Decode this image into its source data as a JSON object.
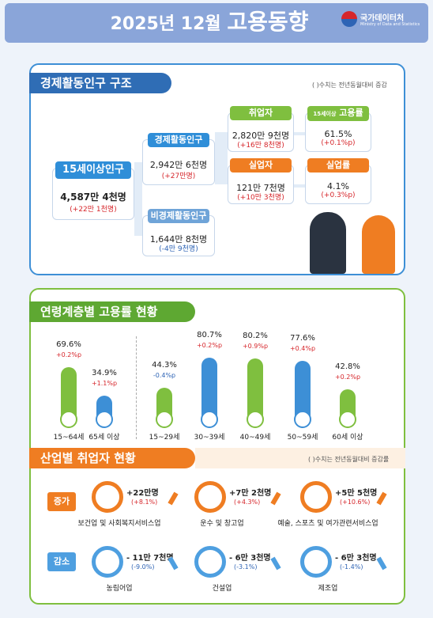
{
  "header": {
    "year": "2025년",
    "month": "12월",
    "title": "고용동향",
    "org": "국가데이터처",
    "org_en": "Ministry of Data and Statistics"
  },
  "structure": {
    "title": "경제활동인구 구조",
    "note": "( )수치는 전년동월대비 증감",
    "population": {
      "label": "15세이상인구",
      "value": "4,587만 4천명",
      "change": "(+22만 1천명)"
    },
    "active": {
      "label": "경제활동인구",
      "value": "2,942만 6천명",
      "change": "(+27만명)"
    },
    "inactive": {
      "label": "비경제활동인구",
      "value": "1,644만 8천명",
      "change": "(-4만 9천명)"
    },
    "employed": {
      "label": "취업자",
      "value": "2,820만 9천명",
      "change": "(+16만 8천명)"
    },
    "unemployed": {
      "label": "실업자",
      "value": "121만 7천명",
      "change": "(+10만 3천명)"
    },
    "employment_rate": {
      "label_prefix": "15세이상",
      "label": "고용률",
      "value": "61.5%",
      "change": "(+0.1%p)"
    },
    "unemployment_rate": {
      "label": "실업률",
      "value": "4.1%",
      "change": "(+0.3%p)"
    }
  },
  "age_chart": {
    "title": "연령계층별 고용률 현황",
    "categories": [
      "15~64세",
      "65세 이상",
      "15~29세",
      "30~39세",
      "40~49세",
      "50~59세",
      "60세 이상"
    ],
    "values": [
      69.6,
      34.9,
      44.3,
      80.7,
      80.2,
      77.6,
      42.8
    ],
    "value_labels": [
      "69.6%",
      "34.9%",
      "44.3%",
      "80.7%",
      "80.2%",
      "77.6%",
      "42.8%"
    ],
    "changes": [
      "+0.2%p",
      "+1.1%p",
      "-0.4%p",
      "+0.2%p",
      "+0.9%p",
      "+0.4%p",
      "+0.2%p"
    ],
    "colors": [
      "#7fbf3f",
      "#3d8fd6",
      "#7fbf3f",
      "#3d8fd6",
      "#7fbf3f",
      "#3d8fd6",
      "#7fbf3f"
    ]
  },
  "industry": {
    "title": "산업별 취업자 현황",
    "note": "( )수치는 전년동월대비 증감률",
    "increase": {
      "label": "증가",
      "items": [
        {
          "name": "보건업 및 사회복지서비스업",
          "change": "+22만명",
          "rate": "(+8.1%)"
        },
        {
          "name": "운수 및 창고업",
          "change": "+7만 2천명",
          "rate": "(+4.3%)"
        },
        {
          "name": "예술, 스포츠 및 여가관련서비스업",
          "change": "+5만 5천명",
          "rate": "(+10.6%)"
        }
      ]
    },
    "decrease": {
      "label": "감소",
      "items": [
        {
          "name": "농림어업",
          "change": "- 11만 7천명",
          "rate": "(-9.0%)"
        },
        {
          "name": "건설업",
          "change": "- 6만 3천명",
          "rate": "(-3.1%)"
        },
        {
          "name": "제조업",
          "change": "- 6만 3천명",
          "rate": "(-1.4%)"
        }
      ]
    }
  }
}
